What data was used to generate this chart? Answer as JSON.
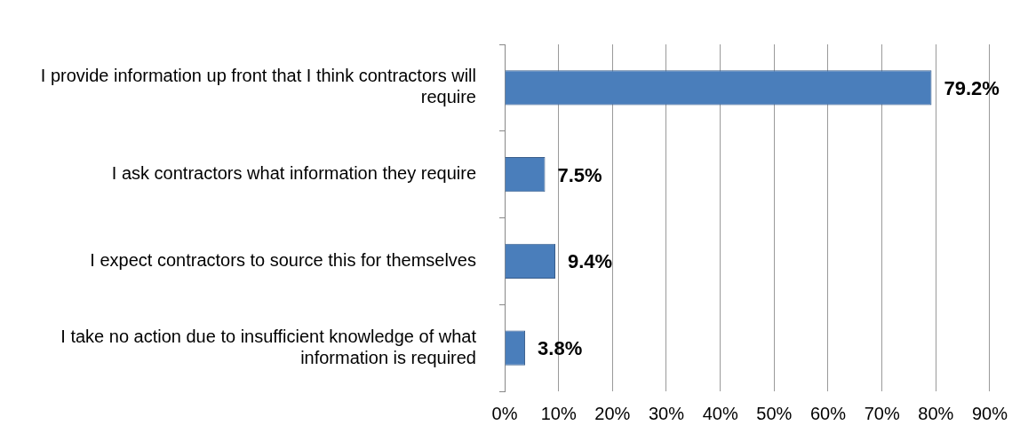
{
  "chart_data": {
    "type": "bar",
    "orientation": "horizontal",
    "categories": [
      "I provide information up front that I think contractors will require",
      "I ask contractors what information they require",
      "I expect contractors to source this for themselves",
      "I take no action due to insufficient knowledge of what information is required"
    ],
    "values": [
      79.2,
      7.5,
      9.4,
      3.8
    ],
    "value_labels": [
      "79.2%",
      "7.5%",
      "9.4%",
      "3.8%"
    ],
    "color": "#4a7ebb",
    "xlim": [
      0,
      90
    ],
    "xticks": [
      {
        "value": 0,
        "label": "0%"
      },
      {
        "value": 10,
        "label": "10%"
      },
      {
        "value": 20,
        "label": "20%"
      },
      {
        "value": 30,
        "label": "30%"
      },
      {
        "value": 40,
        "label": "40%"
      },
      {
        "value": 50,
        "label": "50%"
      },
      {
        "value": 60,
        "label": "60%"
      },
      {
        "value": 70,
        "label": "70%"
      },
      {
        "value": 80,
        "label": "80%"
      },
      {
        "value": 90,
        "label": "90%"
      }
    ],
    "grid": "x",
    "legend": false
  }
}
